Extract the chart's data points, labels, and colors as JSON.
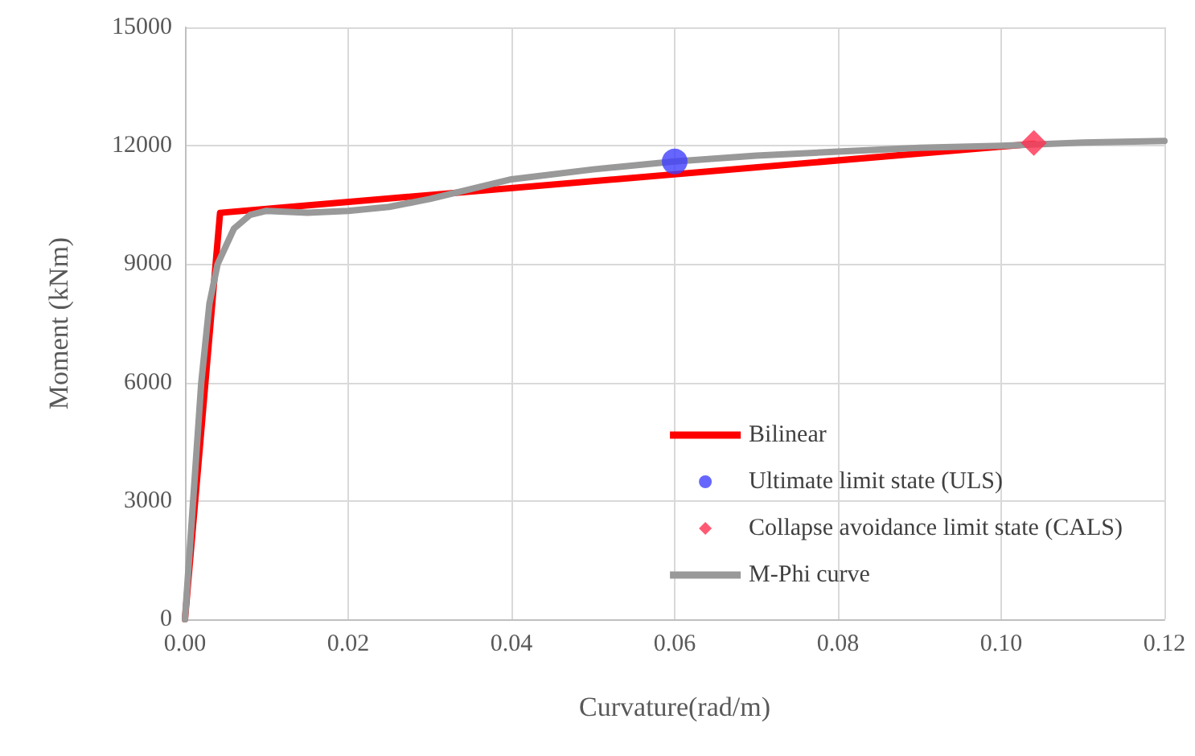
{
  "chart_data": {
    "type": "line",
    "xlabel": "Curvature(rad/m)",
    "ylabel": "Moment (kNm)",
    "xlim": [
      0,
      0.12
    ],
    "xticks": [
      {
        "value": 0,
        "label": "0.00"
      },
      {
        "value": 0.02,
        "label": "0.02"
      },
      {
        "value": 0.04,
        "label": "0.04"
      },
      {
        "value": 0.06,
        "label": "0.06"
      },
      {
        "value": 0.08,
        "label": "0.08"
      },
      {
        "value": 0.1,
        "label": "0.10"
      },
      {
        "value": 0.12,
        "label": "0.12"
      }
    ],
    "ylim": [
      0,
      15000
    ],
    "yticks": [
      0,
      3000,
      6000,
      9000,
      12000,
      15000
    ],
    "grid": true,
    "legend": "bottom right",
    "series": [
      {
        "name": "Bilinear",
        "color": "#ff0000",
        "x": [
          0,
          0.0043,
          0.104
        ],
        "values": [
          0,
          10300,
          12050
        ]
      },
      {
        "name": "Ultimate limit state (ULS)",
        "type": "scatter",
        "marker": "circle",
        "color": "#4040ff",
        "x": [
          0.06
        ],
        "values": [
          11600
        ]
      },
      {
        "name": "Collapse avoidance limit state (CALS)",
        "type": "scatter",
        "marker": "diamond",
        "color": "#ff3050",
        "x": [
          0.104
        ],
        "values": [
          12070
        ]
      },
      {
        "name": "M-Phi curve",
        "color": "#999999",
        "x": [
          0,
          0.001,
          0.002,
          0.003,
          0.004,
          0.006,
          0.008,
          0.01,
          0.015,
          0.02,
          0.025,
          0.03,
          0.035,
          0.04,
          0.05,
          0.06,
          0.07,
          0.08,
          0.09,
          0.1,
          0.11,
          0.12
        ],
        "values": [
          0,
          3000,
          6000,
          8000,
          9000,
          9900,
          10250,
          10350,
          10300,
          10350,
          10450,
          10650,
          10900,
          11150,
          11400,
          11600,
          11750,
          11850,
          11950,
          12000,
          12080,
          12120
        ]
      }
    ]
  }
}
